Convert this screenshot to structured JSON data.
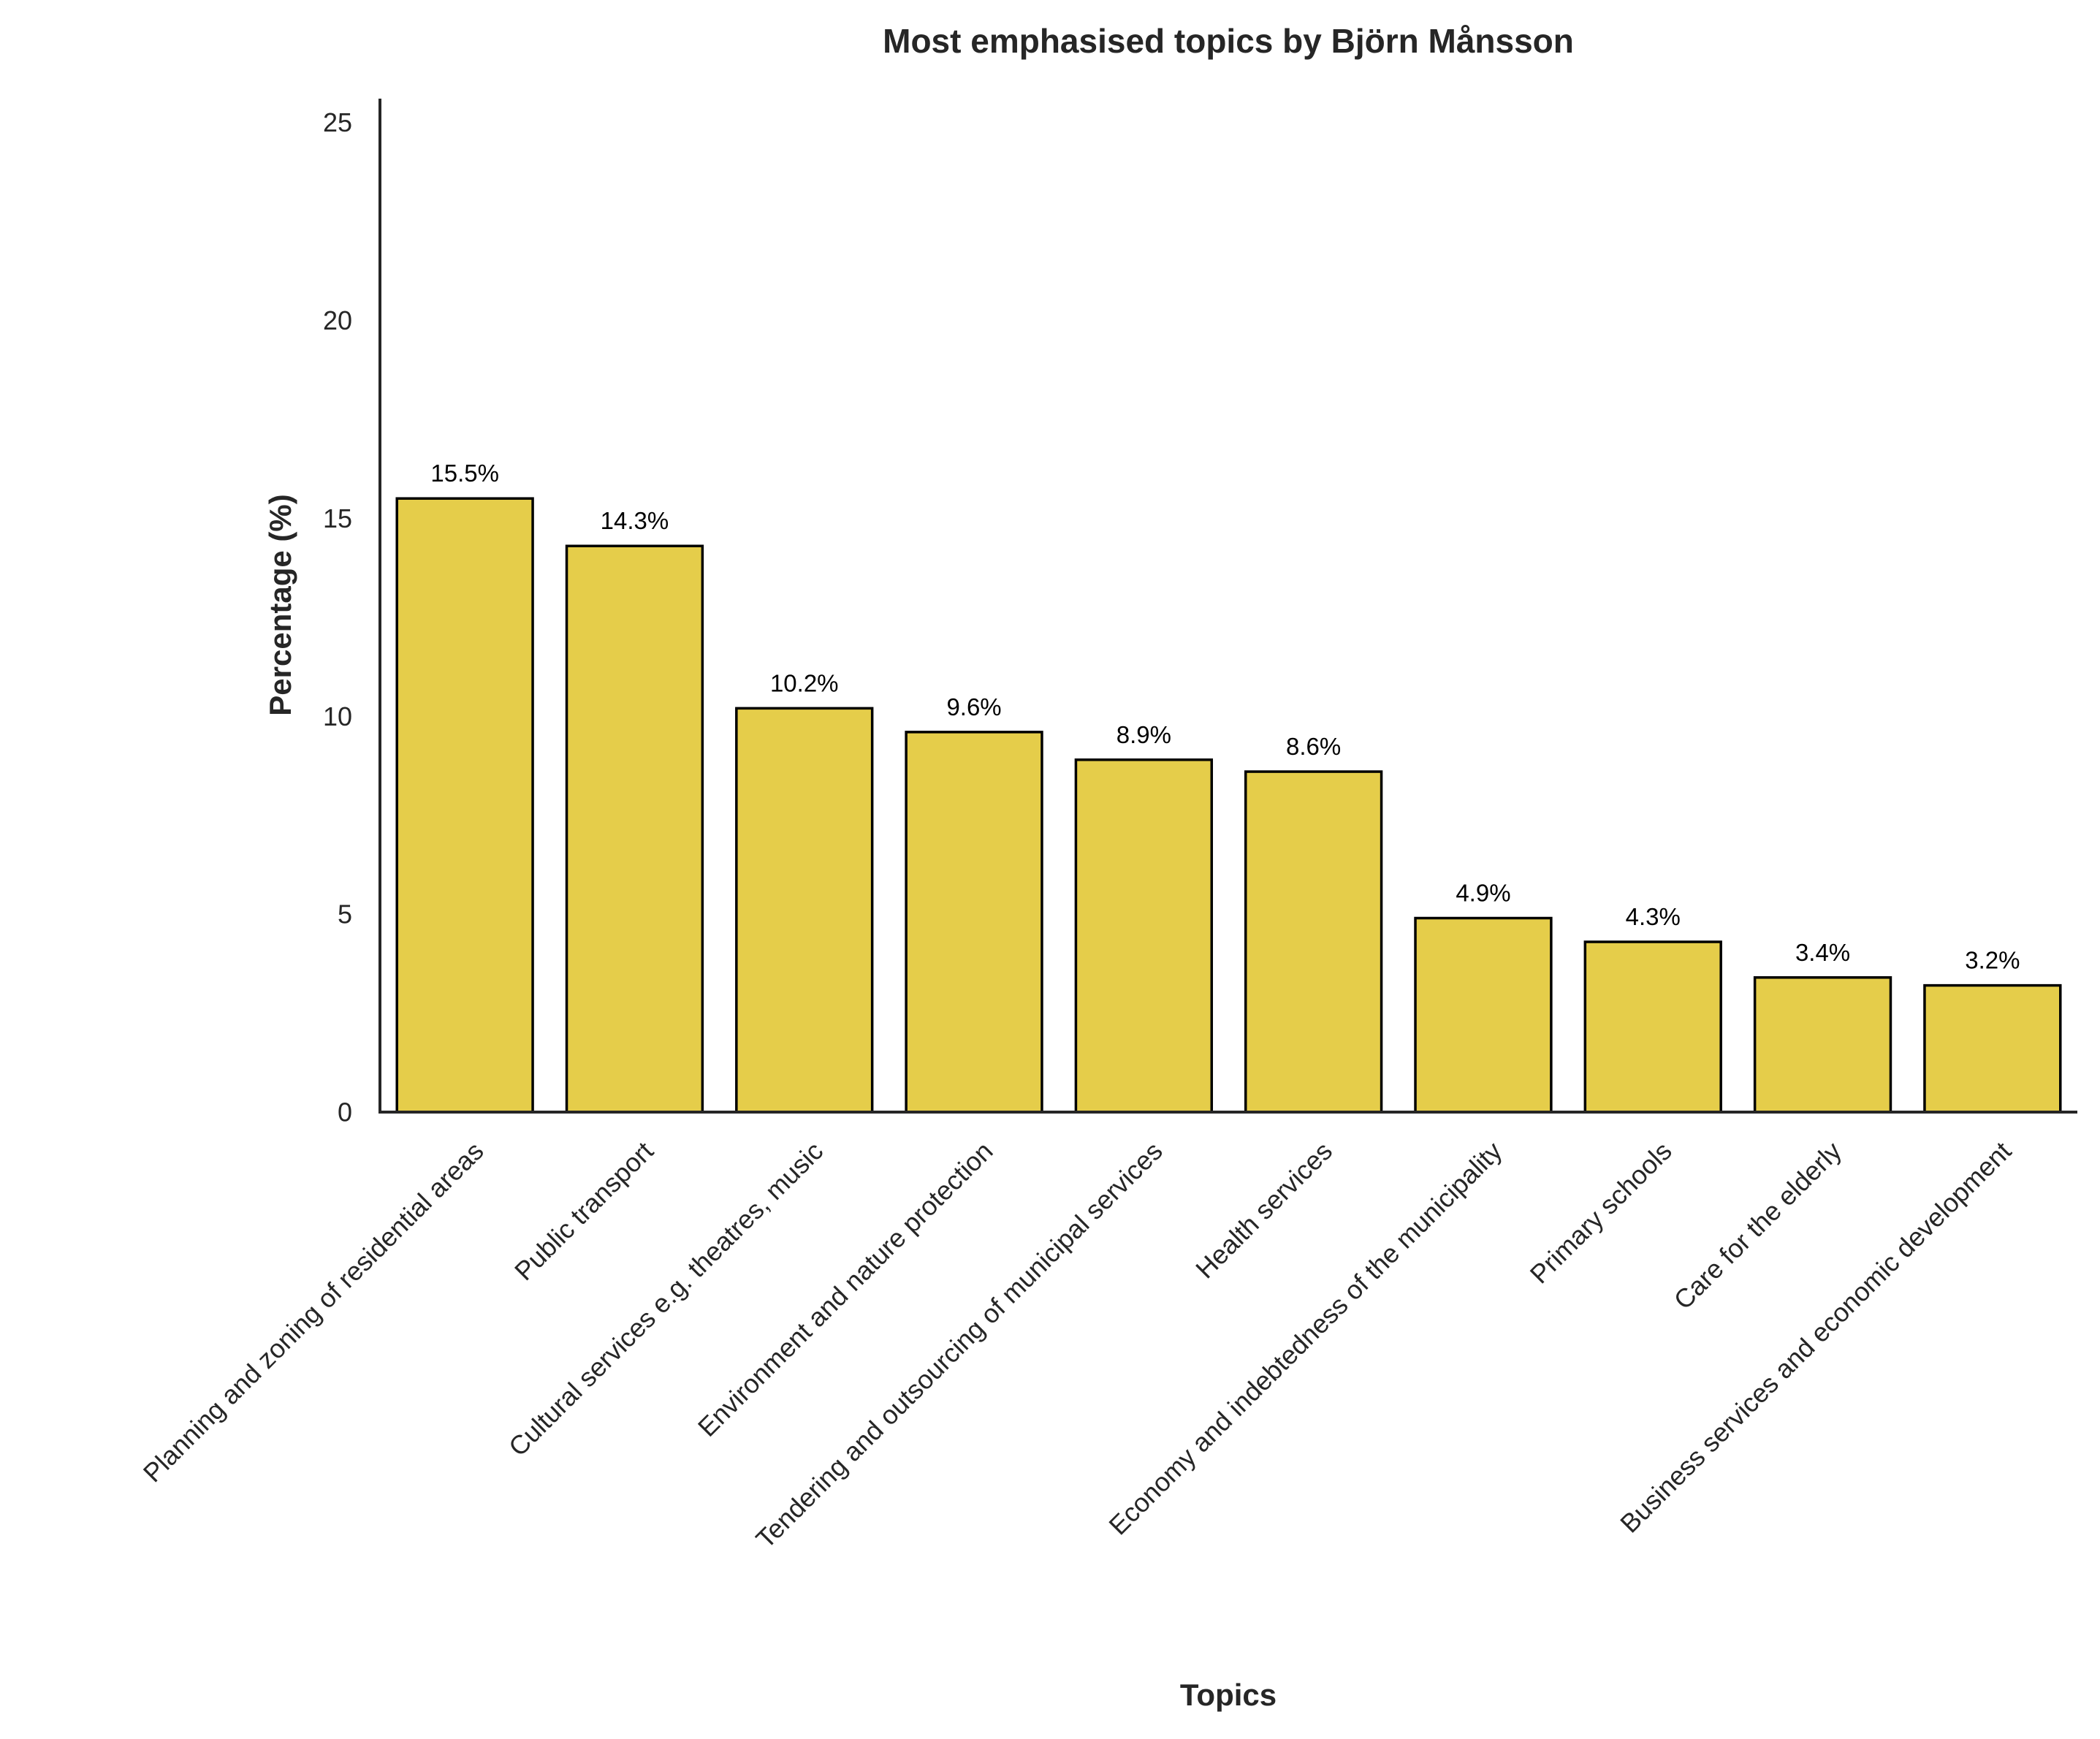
{
  "chart_data": {
    "type": "bar",
    "title": "Most emphasised topics by Björn Månsson",
    "xlabel": "Topics",
    "ylabel": "Percentage (%)",
    "ylim": [
      0,
      25.6
    ],
    "yticks": [
      0,
      5,
      10,
      15,
      20,
      25
    ],
    "grid": false,
    "categories": [
      "Planning and zoning of residential areas",
      "Public transport",
      "Cultural services e.g. theatres, music",
      "Environment and nature protection",
      "Tendering and outsourcing of municipal services",
      "Health services",
      "Economy and indebtedness of the municipality",
      "Primary schools",
      "Care for the elderly",
      "Business services and economic development"
    ],
    "values": [
      15.5,
      14.3,
      10.2,
      9.6,
      8.9,
      8.6,
      4.9,
      4.3,
      3.4,
      3.2
    ],
    "data_labels": [
      "15.5%",
      "14.3%",
      "10.2%",
      "9.6%",
      "8.9%",
      "8.6%",
      "4.9%",
      "4.3%",
      "3.4%",
      "3.2%"
    ],
    "bar_color": "#e5cd4a",
    "bar_edge_color": "#000000"
  }
}
